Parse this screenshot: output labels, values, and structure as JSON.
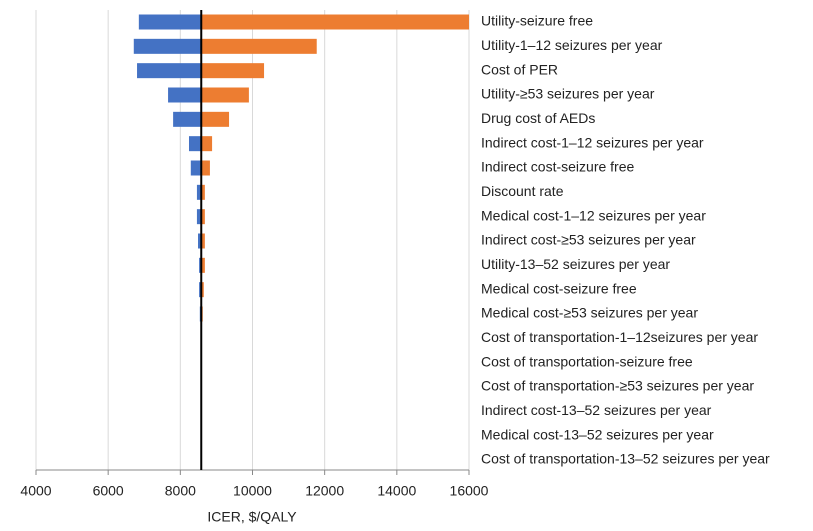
{
  "chart_data": {
    "type": "tornado",
    "x_label": "ICER, $/QALY",
    "categories": [
      "Utility-seizure free",
      "Utility-1–12 seizures per year",
      "Cost of PER",
      "Utility-≥53 seizures per year",
      "Drug cost of AEDs",
      "Indirect cost-1–12 seizures per year",
      "Indirect cost-seizure free",
      "Discount rate",
      "Medical cost-1–12 seizures per year",
      "Indirect cost-≥53 seizures per year",
      "Utility-13–52 seizures per year",
      "Medical cost-seizure free",
      "Medical cost-≥53 seizures per year",
      "Cost of transportation-1–12seizures per year",
      "Cost of transportation-seizure free",
      "Cost of transportation-≥53 seizures per year",
      "Indirect cost-13–52 seizures per year",
      "Medical cost-13–52 seizures per year",
      "Cost of transportation-13–52 seizures per year"
    ],
    "base": 8580,
    "series": [
      {
        "color": "#4472c4",
        "values": [
          6850,
          6710,
          6800,
          7660,
          7800,
          8240,
          8290,
          8460,
          8460,
          8490,
          8520,
          8520,
          8540,
          8570,
          8570,
          8575,
          8575,
          8578,
          8578
        ]
      },
      {
        "color": "#ed7d31",
        "values": [
          16000,
          11780,
          10320,
          9900,
          9350,
          8880,
          8820,
          8680,
          8680,
          8680,
          8680,
          8650,
          8620,
          8600,
          8600,
          8590,
          8590,
          8585,
          8585
        ]
      }
    ],
    "xlim": [
      4000,
      16000
    ],
    "xticks": [
      4000,
      6000,
      8000,
      10000,
      12000,
      14000,
      16000
    ],
    "grid": true
  }
}
